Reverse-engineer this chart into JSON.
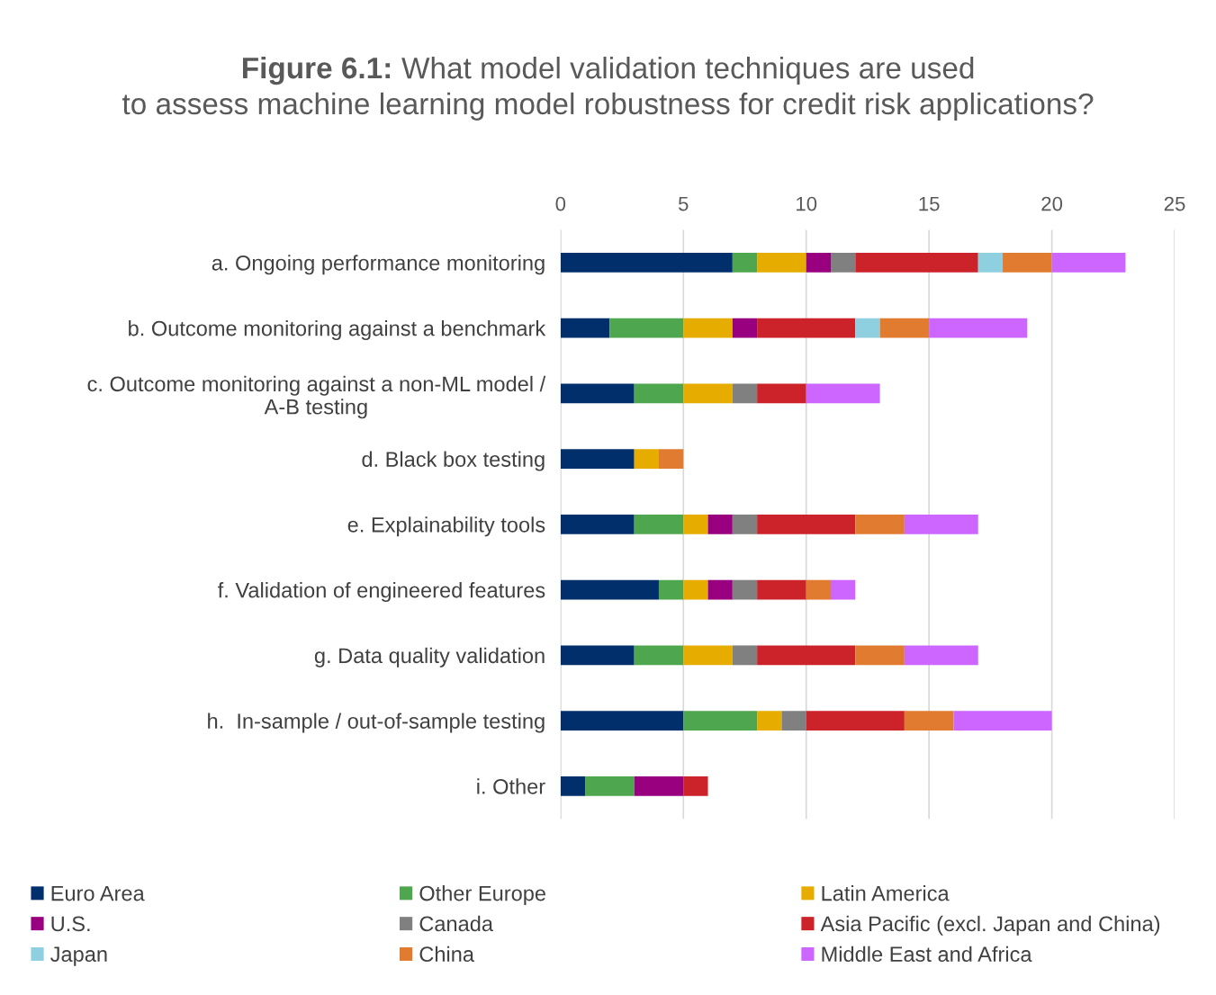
{
  "chart_data": {
    "type": "bar",
    "orientation": "horizontal",
    "stacked": true,
    "title": "Figure 6.1: What model validation techniques are used to assess machine learning model robustness for credit risk applications?",
    "categories": [
      "a. Ongoing performance monitoring",
      "b. Outcome monitoring against a benchmark",
      "c. Outcome monitoring against a non-ML model / A-B testing",
      "d. Black box testing",
      "e. Explainability tools",
      "f. Validation of engineered features",
      "g. Data quality validation",
      "h.  In-sample / out-of-sample testing",
      "i. Other"
    ],
    "series": [
      {
        "name": "Euro Area",
        "color": "#002f6c",
        "values": [
          7,
          2,
          3,
          3,
          3,
          4,
          3,
          5,
          1
        ]
      },
      {
        "name": "Other Europe",
        "color": "#4ea64e",
        "values": [
          1,
          3,
          2,
          0,
          2,
          1,
          2,
          3,
          2
        ]
      },
      {
        "name": "Latin America",
        "color": "#e6ac00",
        "values": [
          2,
          2,
          2,
          1,
          1,
          1,
          2,
          1,
          0
        ]
      },
      {
        "name": "U.S.",
        "color": "#990080",
        "values": [
          1,
          1,
          0,
          0,
          1,
          1,
          0,
          0,
          2
        ]
      },
      {
        "name": "Canada",
        "color": "#808080",
        "values": [
          1,
          0,
          1,
          0,
          1,
          1,
          1,
          1,
          0
        ]
      },
      {
        "name": "Asia Pacific (excl. Japan and China)",
        "color": "#cc2229",
        "values": [
          5,
          4,
          2,
          0,
          4,
          2,
          4,
          4,
          1
        ]
      },
      {
        "name": "Japan",
        "color": "#8fd0e0",
        "values": [
          1,
          1,
          0,
          0,
          0,
          0,
          0,
          0,
          0
        ]
      },
      {
        "name": "China",
        "color": "#e07b30",
        "values": [
          2,
          2,
          0,
          1,
          2,
          1,
          2,
          2,
          0
        ]
      },
      {
        "name": "Middle East and Africa",
        "color": "#cc66ff",
        "values": [
          3,
          4,
          3,
          0,
          3,
          1,
          3,
          4,
          0
        ]
      }
    ],
    "xlim": [
      0,
      25
    ],
    "xticks": [
      0,
      5,
      10,
      15,
      20,
      25
    ],
    "grid": "x",
    "legend": "bottom"
  }
}
